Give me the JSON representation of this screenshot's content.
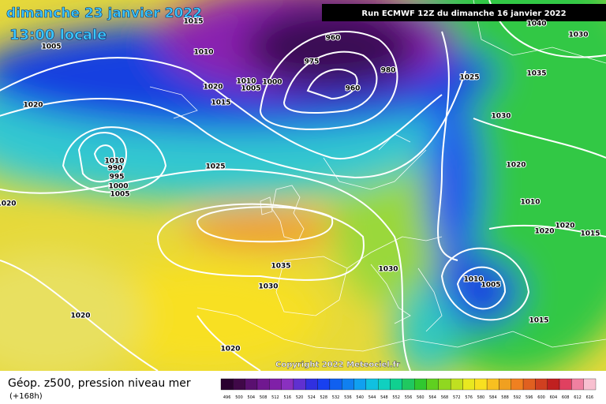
{
  "header": {
    "date": "dimanche 23 janvier 2022",
    "time": "13:00 locale",
    "run": "Run ECMWF 12Z du dimanche 16 janvier 2022"
  },
  "footer": {
    "title": "Géop. z500, pression niveau mer",
    "lead": "(+168h)",
    "copyright": "Copyright 2022 Meteociel.fr"
  },
  "legend": {
    "labels": [
      496,
      500,
      504,
      508,
      512,
      516,
      520,
      524,
      528,
      532,
      536,
      540,
      544,
      548,
      552,
      556,
      560,
      564,
      568,
      572,
      576,
      580,
      584,
      588,
      592,
      596,
      600,
      604,
      608,
      612,
      616
    ]
  },
  "map": {
    "isobar_labels": [
      "1015",
      "1005",
      "1010",
      "1020",
      "1020",
      "1015",
      "1010",
      "1005",
      "1000",
      "960",
      "975",
      "980",
      "960",
      "1025",
      "1040",
      "1030",
      "1035",
      "1030",
      "1025",
      "1020",
      "1010",
      "1020",
      "1020",
      "1015",
      "1035",
      "1030",
      "1030",
      "1010",
      "1005",
      "1015",
      "1020",
      "1020",
      "1020",
      "990",
      "995",
      "1000",
      "1005",
      "1010"
    ]
  }
}
